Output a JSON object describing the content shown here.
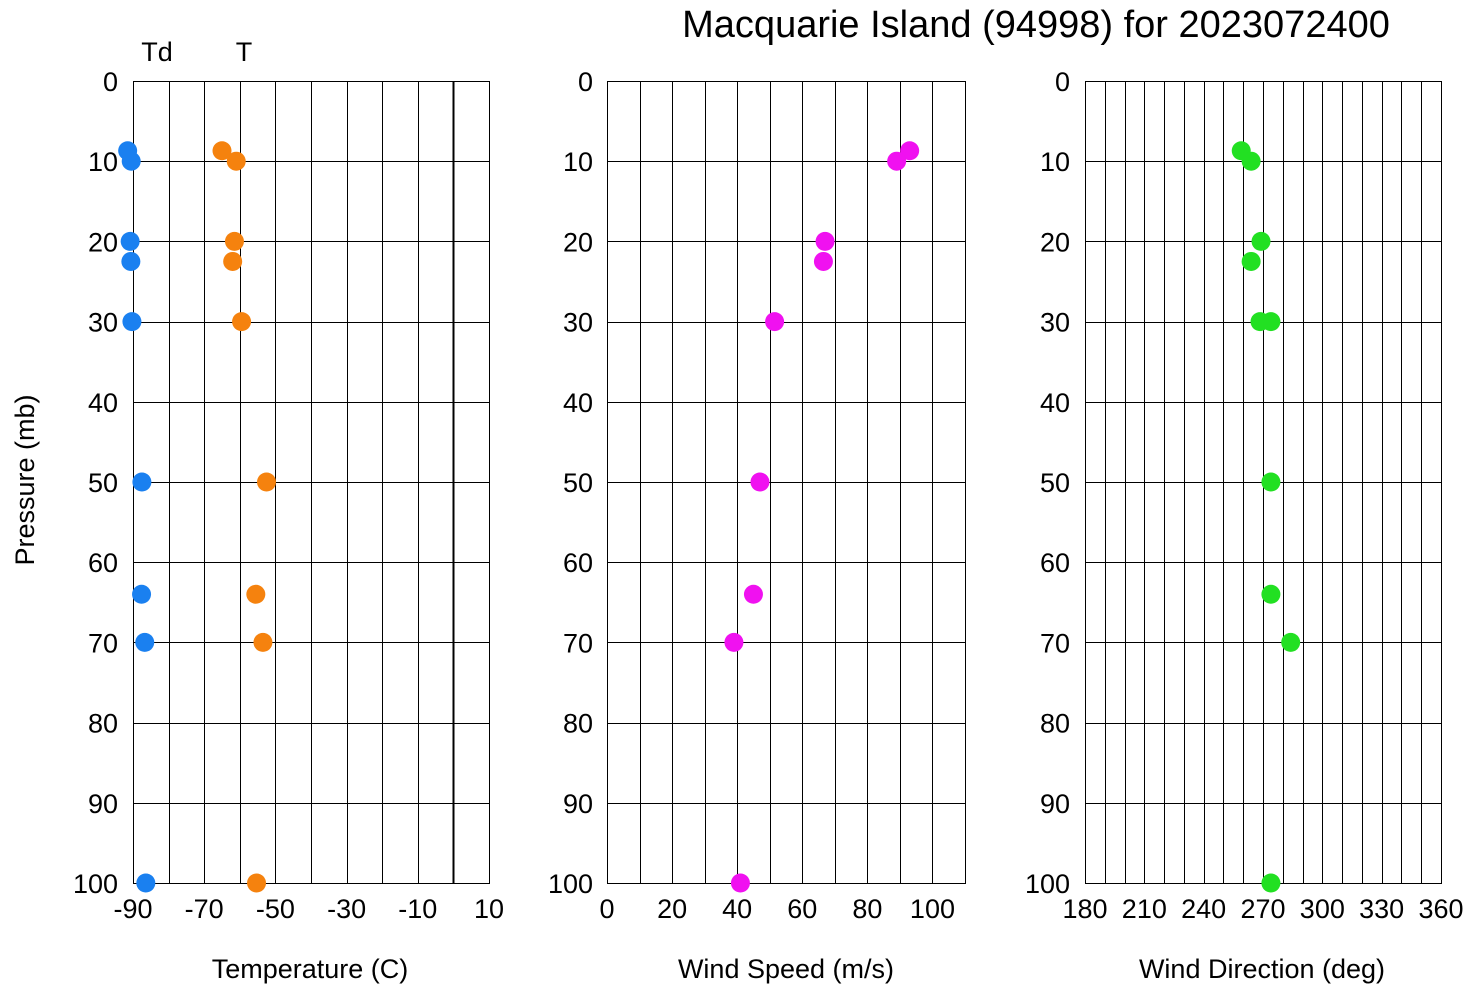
{
  "title": "Macquarie Island (94998) for 2023072400",
  "ylabel": "Pressure (mb)",
  "legend": {
    "td_label": "Td",
    "t_label": "T"
  },
  "colors": {
    "td": "#1a80f0",
    "t": "#f5820e",
    "speed": "#f011f0",
    "direction": "#22e022"
  },
  "chart_data": [
    {
      "type": "scatter",
      "xlabel": "Temperature (C)",
      "ylabel": "Pressure (mb)",
      "xlim": [
        -90,
        10
      ],
      "ylim": [
        100,
        0
      ],
      "x_ticks": [
        "-90",
        "-70",
        "-50",
        "-30",
        "-10",
        "10"
      ],
      "y_ticks": [
        "0",
        "10",
        "20",
        "30",
        "40",
        "50",
        "60",
        "70",
        "80",
        "90",
        "100"
      ],
      "vertical_line_x": 0,
      "series": [
        {
          "name": "Td",
          "color": "#1a80f0",
          "points": [
            [
              -91.5,
              8.7
            ],
            [
              -90.5,
              10
            ],
            [
              -90.8,
              20
            ],
            [
              -90.6,
              22.5
            ],
            [
              -90.3,
              30
            ],
            [
              -87.5,
              50
            ],
            [
              -87.6,
              64
            ],
            [
              -86.7,
              70
            ],
            [
              -86.4,
              100
            ]
          ]
        },
        {
          "name": "T",
          "color": "#f5820e",
          "points": [
            [
              -65,
              8.7
            ],
            [
              -61,
              10
            ],
            [
              -61.5,
              20
            ],
            [
              -62,
              22.5
            ],
            [
              -59.5,
              30
            ],
            [
              -52.5,
              50
            ],
            [
              -55.5,
              64
            ],
            [
              -53.5,
              70
            ],
            [
              -55.3,
              100
            ]
          ]
        }
      ]
    },
    {
      "type": "scatter",
      "xlabel": "Wind Speed (m/s)",
      "ylabel": "",
      "xlim": [
        0,
        110
      ],
      "ylim": [
        100,
        0
      ],
      "x_ticks": [
        "0",
        "20",
        "40",
        "60",
        "80",
        "100"
      ],
      "y_ticks": [
        "0",
        "10",
        "20",
        "30",
        "40",
        "50",
        "60",
        "70",
        "80",
        "90",
        "100"
      ],
      "series": [
        {
          "name": "",
          "color": "#f011f0",
          "points": [
            [
              93,
              8.7
            ],
            [
              89,
              10
            ],
            [
              67,
              20
            ],
            [
              66.5,
              22.5
            ],
            [
              51.5,
              30
            ],
            [
              47,
              50
            ],
            [
              45,
              64
            ],
            [
              39,
              70
            ],
            [
              41,
              100
            ]
          ]
        }
      ]
    },
    {
      "type": "scatter",
      "xlabel": "Wind Direction (deg)",
      "ylabel": "",
      "xlim": [
        180,
        360
      ],
      "ylim": [
        100,
        0
      ],
      "x_ticks": [
        "180",
        "210",
        "240",
        "270",
        "300",
        "330",
        "360"
      ],
      "y_ticks": [
        "0",
        "10",
        "20",
        "30",
        "40",
        "50",
        "60",
        "70",
        "80",
        "90",
        "100"
      ],
      "series": [
        {
          "name": "",
          "color": "#22e022",
          "points": [
            [
              259,
              8.7
            ],
            [
              264,
              10
            ],
            [
              269,
              20
            ],
            [
              264,
              22.5
            ],
            [
              268.5,
              30
            ],
            [
              274,
              30
            ],
            [
              274,
              50
            ],
            [
              274,
              64
            ],
            [
              284,
              70
            ],
            [
              274,
              100
            ]
          ]
        }
      ]
    }
  ]
}
